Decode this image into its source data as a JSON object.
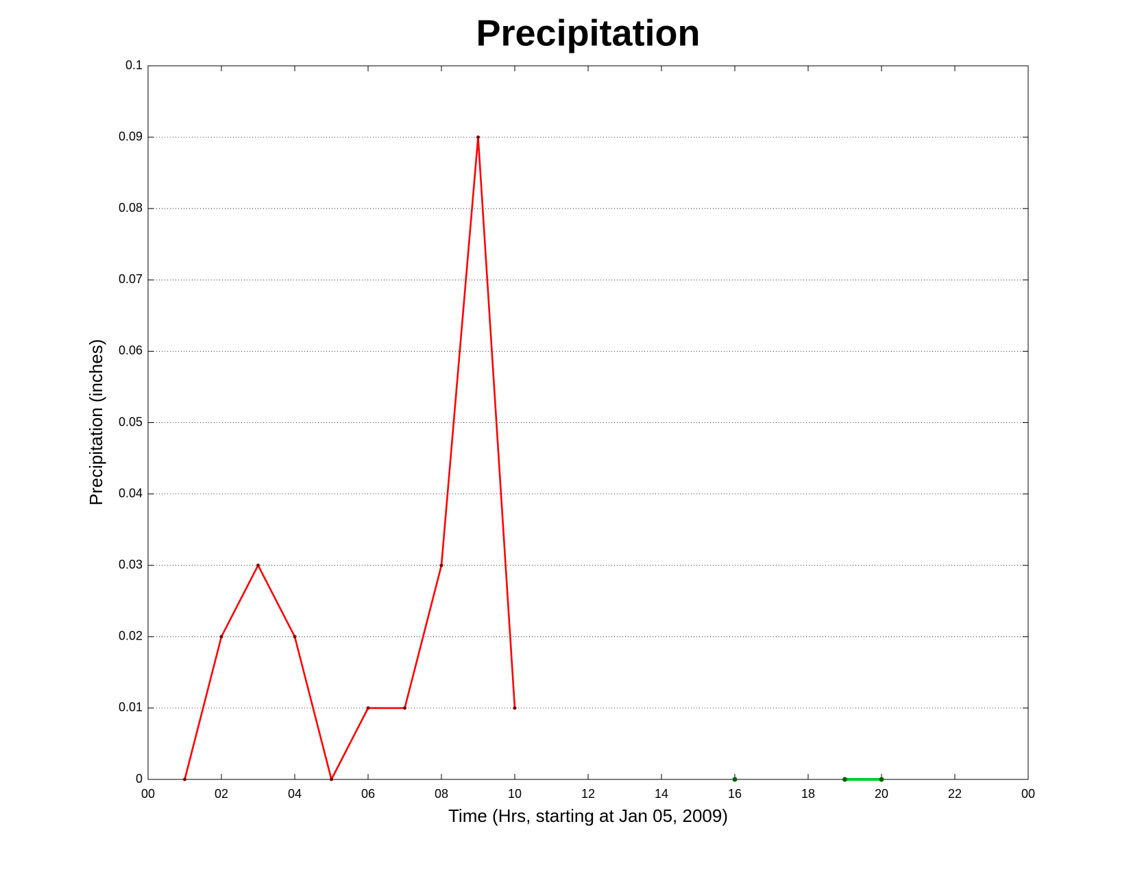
{
  "chart_data": {
    "type": "line",
    "title": "Precipitation",
    "x_label": "Time (Hrs, starting at Jan 05, 2009)",
    "y_label": "Precipitation (inches)",
    "series": [
      {
        "color": "#ff0000",
        "marker_color": "#800000",
        "x": [
          1,
          2,
          3,
          4,
          5,
          6,
          7,
          8,
          9,
          10
        ],
        "values": [
          0,
          0.02,
          0.03,
          0.02,
          0,
          0.01,
          0.01,
          0.03,
          0.09,
          0.01
        ]
      },
      {
        "color": "#00cc33",
        "marker_color": "#006400",
        "x": [
          16,
          17,
          18,
          19,
          20
        ],
        "values": [
          0,
          null,
          null,
          0,
          0
        ]
      }
    ],
    "xlim": [
      0,
      24
    ],
    "xticks": [
      {
        "value": 0,
        "label": "00"
      },
      {
        "value": 2,
        "label": "02"
      },
      {
        "value": 4,
        "label": "04"
      },
      {
        "value": 6,
        "label": "06"
      },
      {
        "value": 8,
        "label": "08"
      },
      10,
      12,
      14,
      16,
      18,
      20,
      22,
      {
        "value": 24,
        "label": "00"
      }
    ],
    "ylim": [
      0,
      0.1
    ],
    "yticks": [
      0,
      0.01,
      0.02,
      0.03,
      0.04,
      0.05,
      0.06,
      0.07,
      0.08,
      0.09,
      0.1
    ],
    "grid": true
  }
}
